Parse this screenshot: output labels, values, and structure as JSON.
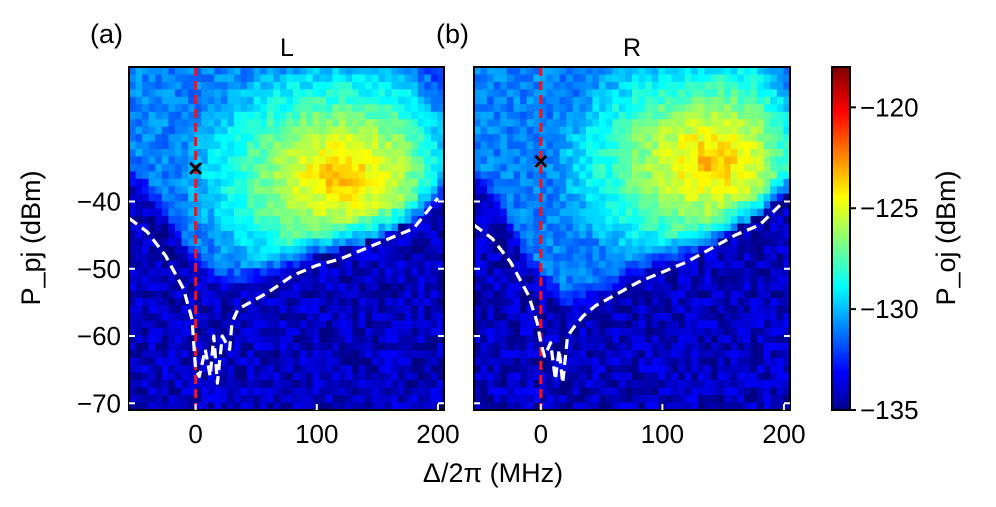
{
  "chart_data": {
    "type": "heatmap",
    "shared_xlabel": "Δ/2π (MHz)",
    "shared_ylabel": "P_pj (dBm)",
    "xlim": [
      -55,
      205
    ],
    "ylim": [
      -71,
      -20
    ],
    "xticks": [
      0,
      100,
      200
    ],
    "yticks": [
      -70,
      -60,
      -50,
      -40
    ],
    "grid": false,
    "colorbar": {
      "label": "P_oj (dBm)",
      "range": [
        -135,
        -118
      ],
      "ticks": [
        -135,
        -130,
        -125,
        -120
      ],
      "colormap": "jet"
    },
    "panels": [
      {
        "panel_label": "(a)",
        "title": "L",
        "marker": {
          "symbol": "×",
          "x": 0,
          "y": -35
        },
        "vertical_line_x": 0,
        "threshold_dashed_curve": {
          "x": [
            -55,
            -40,
            -25,
            -10,
            -3,
            0,
            3,
            8,
            12,
            15,
            18,
            22,
            28,
            30,
            35,
            45,
            60,
            80,
            100,
            120,
            140,
            160,
            180,
            200
          ],
          "y": [
            -42.5,
            -44.5,
            -48.0,
            -53.0,
            -57.5,
            -65.0,
            -66.0,
            -62.0,
            -66.0,
            -60.0,
            -67.0,
            -60.0,
            -62.0,
            -58.0,
            -56.0,
            -55.0,
            -53.5,
            -51.0,
            -49.5,
            -48.5,
            -47.0,
            -45.5,
            -44.0,
            -39.5
          ]
        },
        "response_edge_dBm": {
          "x": [
            -55,
            -40,
            -25,
            -10,
            0,
            20,
            40,
            60,
            80,
            100,
            120,
            140,
            160,
            180,
            200
          ],
          "y": [
            -38.0,
            -40.0,
            -44.0,
            -48.5,
            -50.5,
            -54.0,
            -53.5,
            -52.0,
            -50.0,
            -48.0,
            -47.0,
            -46.0,
            -44.5,
            -43.0,
            -40.0
          ]
        },
        "peak_region": {
          "x_center": 120,
          "y_center": -36,
          "value_dBm": -120.5
        },
        "background_dBm": -134
      },
      {
        "panel_label": "(b)",
        "title": "R",
        "marker": {
          "symbol": "×",
          "x": 0,
          "y": -34
        },
        "vertical_line_x": 0,
        "threshold_dashed_curve": {
          "x": [
            -55,
            -40,
            -25,
            -10,
            -3,
            0,
            3,
            8,
            12,
            15,
            18,
            22,
            28,
            35,
            45,
            60,
            80,
            100,
            120,
            140,
            160,
            180,
            200
          ],
          "y": [
            -43.5,
            -45.5,
            -49.0,
            -54.0,
            -58.0,
            -61.0,
            -63.0,
            -61.0,
            -66.5,
            -62.0,
            -67.0,
            -60.0,
            -58.5,
            -57.0,
            -55.5,
            -54.0,
            -52.0,
            -50.5,
            -49.0,
            -47.0,
            -45.0,
            -43.5,
            -40.0
          ]
        },
        "response_edge_dBm": {
          "x": [
            -55,
            -40,
            -25,
            -10,
            0,
            20,
            40,
            60,
            80,
            100,
            120,
            140,
            160,
            180,
            200
          ],
          "y": [
            -38.5,
            -41.0,
            -46.0,
            -51.0,
            -53.0,
            -57.0,
            -56.0,
            -54.0,
            -52.0,
            -50.0,
            -48.0,
            -46.5,
            -44.0,
            -42.0,
            -39.0
          ]
        },
        "peak_region": {
          "x_center": 140,
          "y_center": -34,
          "value_dBm": -120.5
        },
        "background_dBm": -134
      }
    ]
  }
}
